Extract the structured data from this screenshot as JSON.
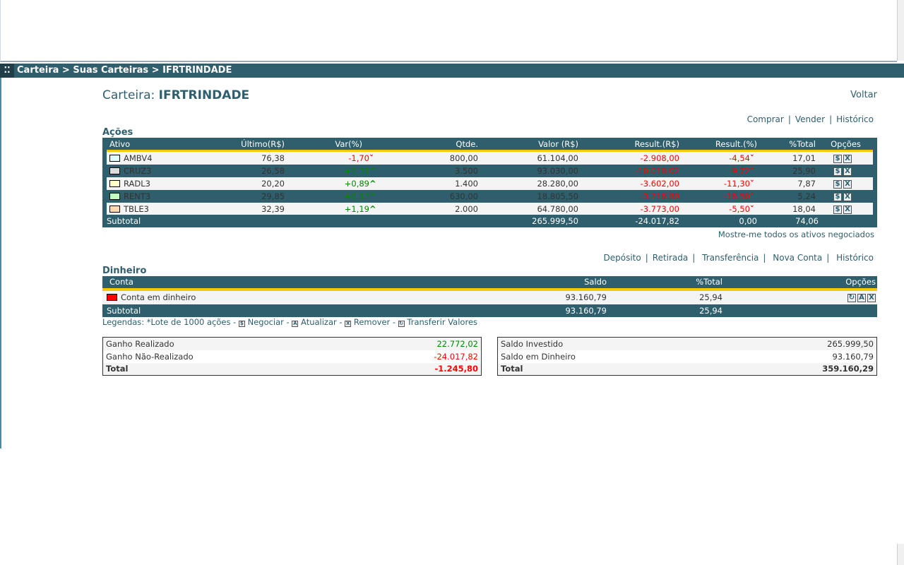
{
  "nav": {
    "breadcrumb": "Carteira > Suas Carteiras > IFRTRINDADE"
  },
  "header": {
    "title_label": "Carteira:",
    "title_name": "IFRTRINDADE",
    "back": "Voltar"
  },
  "acoes_links": [
    "Comprar",
    "Vender",
    "Histórico"
  ],
  "acoes": {
    "title": "Ações",
    "columns": [
      "Ativo",
      "Último(R$)",
      "Var(%)",
      "Qtde.",
      "Valor (R$)",
      "Result.(R$)",
      "Result.(%)",
      "%Total",
      "Opções"
    ],
    "rows": [
      {
        "ativo": "AMBV4",
        "color": "#e0ffff",
        "ultimo": "76,38",
        "var": "-1,70",
        "var_dir": "down",
        "qtde": "800,00",
        "valor": "61.104,00",
        "result": "-2.908,00",
        "result_pct": "-4,54",
        "total": "17,01"
      },
      {
        "ativo": "CRUZ3",
        "color": "#dcdcdc",
        "ultimo": "26,58",
        "var": "+1,32",
        "var_dir": "up",
        "qtde": "3.500",
        "valor": "93.030,00",
        "result": "-10.018,02",
        "result_pct": "-9,72",
        "total": "25,90"
      },
      {
        "ativo": "RADL3",
        "color": "#ffffc8",
        "ultimo": "20,20",
        "var": "+0,89",
        "var_dir": "up",
        "qtde": "1.400",
        "valor": "28.280,00",
        "result": "-3.602,00",
        "result_pct": "-11,30",
        "total": "7,87"
      },
      {
        "ativo": "RENT3",
        "color": "#c0ffc0",
        "ultimo": "29,85",
        "var": "+0,17",
        "var_dir": "up",
        "qtde": "630,00",
        "valor": "18.805,50",
        "result": "-3.716,80",
        "result_pct": "-16,50",
        "total": "5,24"
      },
      {
        "ativo": "TBLE3",
        "color": "#ffd8b0",
        "ultimo": "32,39",
        "var": "+1,19",
        "var_dir": "up",
        "qtde": "2.000",
        "valor": "64.780,00",
        "result": "-3.773,00",
        "result_pct": "-5,50",
        "total": "18,04"
      }
    ],
    "subtotal": {
      "label": "Subtotal",
      "valor": "265.999,50",
      "result": "-24.017,82",
      "result_pct": "0,00",
      "total": "74,06"
    },
    "show_all": "Mostre-me todos os ativos negociados"
  },
  "dinheiro_links": [
    "Depósito",
    "Retirada",
    "Transferência",
    "Nova Conta",
    "Histórico"
  ],
  "dinheiro": {
    "title": "Dinheiro",
    "columns": [
      "Conta",
      "Saldo",
      "%Total",
      "Opções"
    ],
    "row": {
      "conta": "Conta em dinheiro",
      "color": "#ff0000",
      "saldo": "93.160,79",
      "total": "25,94"
    },
    "subtotal": {
      "label": "Subtotal",
      "saldo": "93.160,79",
      "total": "25,94"
    }
  },
  "legend": {
    "prefix": "Legendas: *Lote de 1000 ações -",
    "negociar": "Negociar -",
    "atualizar": "Atualizar -",
    "remover": "Remover -",
    "transferir": "Transferir Valores"
  },
  "summary_left": [
    {
      "label": "Ganho Realizado",
      "value": "22.772,02",
      "color": "#080"
    },
    {
      "label": "Ganho Não-Realizado",
      "value": "-24.017,82",
      "color": "#f00"
    },
    {
      "label": "Total",
      "value": "-1.245,80",
      "color": "#f00"
    }
  ],
  "summary_right": [
    {
      "label": "Saldo Investido",
      "value": "265.999,50"
    },
    {
      "label": "Saldo em Dinheiro",
      "value": "93.160,79"
    },
    {
      "label": "Total",
      "value": "359.160,29"
    }
  ]
}
